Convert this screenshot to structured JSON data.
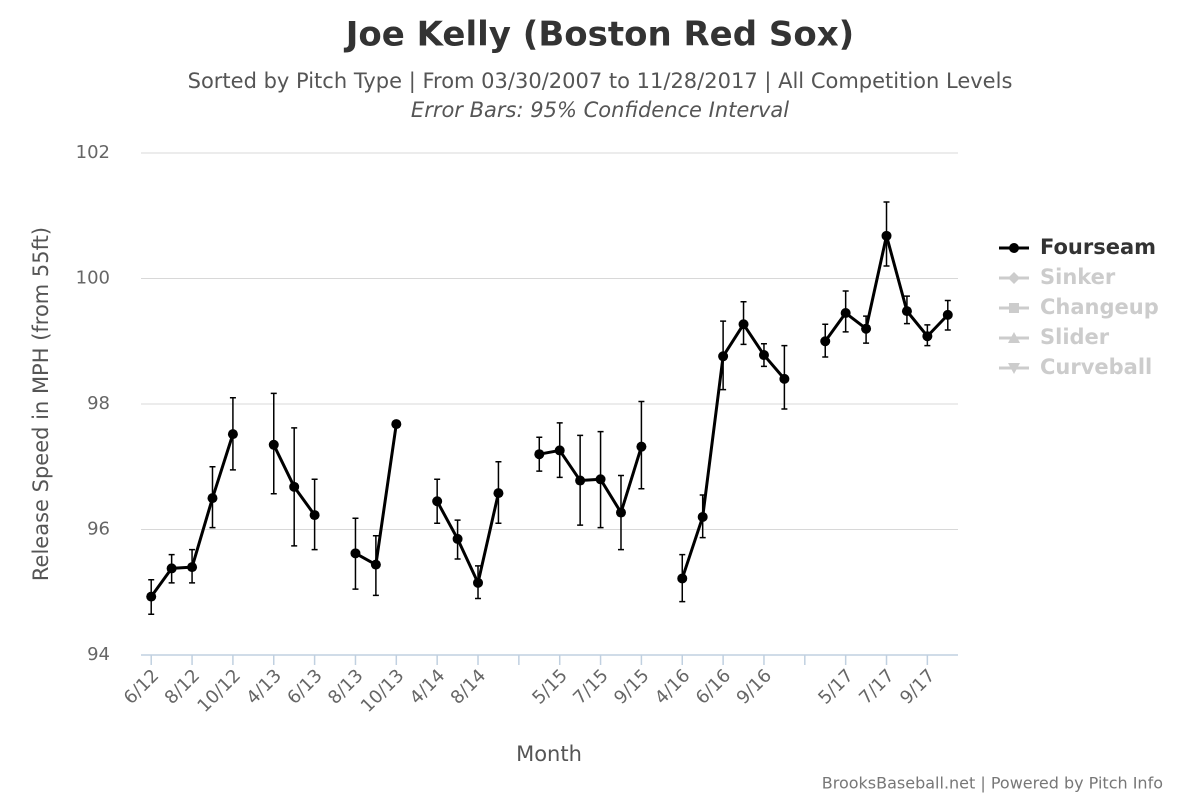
{
  "chart_data": {
    "type": "line",
    "title": "Joe Kelly (Boston Red Sox)",
    "subtitle": "Sorted by Pitch Type | From 03/30/2007 to 11/28/2017 | All Competition Levels",
    "subtitle2": "Error Bars: 95% Confidence Interval",
    "xlabel": "Month",
    "ylabel": "Release Speed in MPH (from 55ft)",
    "credit": "BrooksBaseball.net | Powered by Pitch Info",
    "categories": [
      "6/12",
      null,
      "8/12",
      null,
      "10/12",
      null,
      "4/13",
      null,
      "6/13",
      null,
      "8/13",
      null,
      "10/13",
      null,
      "4/14",
      null,
      "8/14",
      null,
      null,
      null,
      "5/15",
      null,
      "7/15",
      null,
      "9/15",
      null,
      "4/16",
      null,
      "6/16",
      null,
      "9/16",
      null,
      null,
      null,
      "5/17",
      null,
      "7/17",
      null,
      "9/17",
      null
    ],
    "ylim": [
      94,
      102
    ],
    "yticks": [
      94,
      96,
      98,
      100,
      102
    ],
    "grid": true,
    "legend": "right",
    "series": [
      {
        "name": "Fourseam",
        "color": "#000000",
        "marker": "circle",
        "visible": true,
        "values": [
          94.93,
          95.38,
          95.4,
          96.5,
          97.52,
          null,
          97.35,
          96.68,
          96.23,
          null,
          95.62,
          95.44,
          97.68,
          null,
          96.45,
          95.85,
          95.15,
          96.58,
          null,
          97.2,
          97.26,
          96.78,
          96.8,
          96.27,
          97.32,
          null,
          95.22,
          96.2,
          98.76,
          99.27,
          98.78,
          98.4,
          null,
          99.0,
          99.45,
          99.2,
          100.68,
          99.48,
          99.08,
          99.42
        ],
        "lower": [
          94.65,
          95.15,
          95.15,
          96.03,
          96.95,
          null,
          96.57,
          95.74,
          95.68,
          null,
          95.05,
          94.95,
          null,
          null,
          96.1,
          95.53,
          94.9,
          96.1,
          null,
          96.93,
          96.83,
          96.07,
          96.03,
          95.68,
          96.65,
          null,
          94.85,
          95.87,
          98.23,
          98.95,
          98.6,
          97.92,
          null,
          98.75,
          99.15,
          98.97,
          100.2,
          99.28,
          98.93,
          99.18
        ],
        "upper": [
          95.2,
          95.6,
          95.68,
          97.0,
          98.1,
          null,
          98.17,
          97.62,
          96.8,
          null,
          96.18,
          95.9,
          null,
          null,
          96.8,
          96.15,
          95.42,
          97.08,
          null,
          97.47,
          97.7,
          97.5,
          97.56,
          96.86,
          98.04,
          null,
          95.6,
          96.55,
          99.32,
          99.63,
          98.96,
          98.93,
          null,
          99.27,
          99.8,
          99.4,
          101.22,
          99.72,
          99.26,
          99.65
        ]
      },
      {
        "name": "Sinker",
        "color": "#cccccc",
        "marker": "diamond",
        "visible": false
      },
      {
        "name": "Changeup",
        "color": "#cccccc",
        "marker": "square",
        "visible": false
      },
      {
        "name": "Slider",
        "color": "#cccccc",
        "marker": "triangle",
        "visible": false
      },
      {
        "name": "Curveball",
        "color": "#cccccc",
        "marker": "triangle-down",
        "visible": false
      }
    ]
  }
}
